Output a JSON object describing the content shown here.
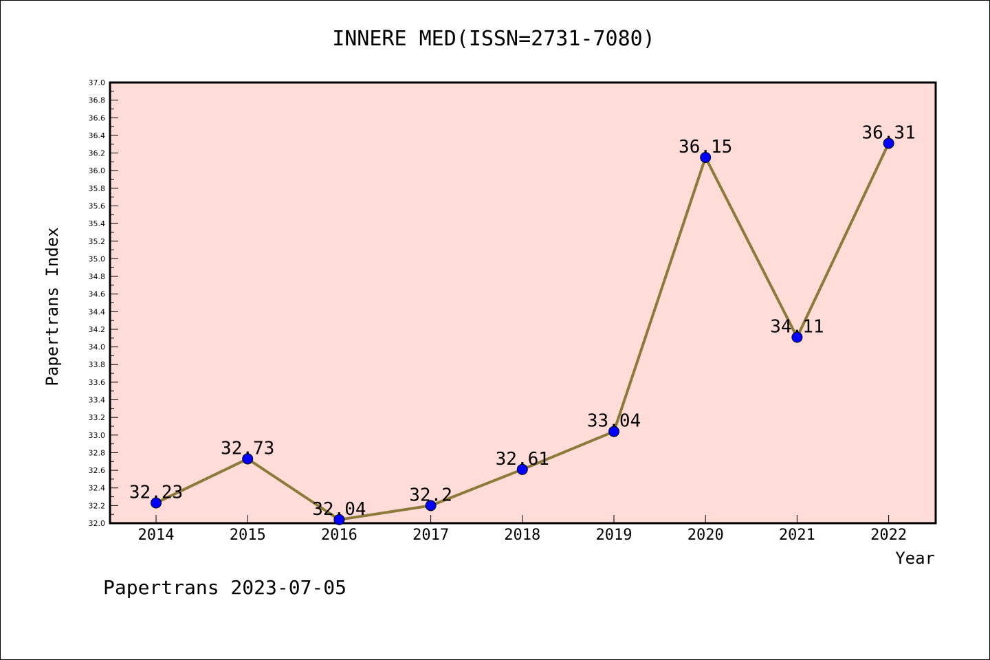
{
  "chart_data": {
    "type": "line",
    "title": "INNERE MED(ISSN=2731-7080)",
    "xlabel": "Year",
    "ylabel": "Papertrans Index",
    "categories": [
      "2014",
      "2015",
      "2016",
      "2017",
      "2018",
      "2019",
      "2020",
      "2021",
      "2022"
    ],
    "series": [
      {
        "values": [
          32.23,
          32.73,
          32.04,
          32.2,
          32.61,
          33.04,
          36.15,
          34.11,
          36.31
        ],
        "labels": [
          "32.23",
          "32.73",
          "32.04",
          "32.2",
          "32.61",
          "33.04",
          "36.15",
          "34.11",
          "36.31"
        ]
      }
    ],
    "ylim": [
      32.0,
      37.0
    ],
    "ytick_step": 0.2,
    "grid": false,
    "colors": {
      "plot_background": "#ffdcd8",
      "line": "#8c7a3a",
      "marker": "#0000ff"
    }
  },
  "footer": "Papertrans 2023-07-05"
}
